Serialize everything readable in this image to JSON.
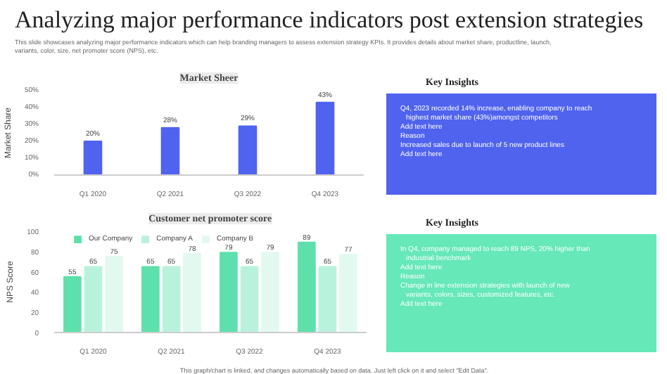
{
  "chart_data": [
    {
      "type": "other",
      "title": "Analyzing major performance indicators post extension strategies",
      "subtitle": "This slide showcases analyzing major performance indicators which can help branding managers to assess extension strategy KPIs. It provides details about market share, productline, launch, variants, color, size, net promoter score (NPS), etc.",
      "annotations": [
        "This graph/chart is linked, and changes automatically based on data. Just left click on it and select \"Edit Data\"."
      ]
    },
    {
      "type": "bar",
      "title": "Market Sheer",
      "ylabel": "Market Share",
      "categories": [
        "Q1 2020",
        "Q2 2021",
        "Q3 2022",
        "Q4 2023"
      ],
      "values": [
        20,
        28,
        29,
        43
      ],
      "value_labels": [
        "20%",
        "28%",
        "29%",
        "43%"
      ],
      "color": "#4f63f0",
      "ylim": [
        0,
        50
      ],
      "yticks": [
        {
          "value": 0,
          "label": "0%"
        },
        {
          "value": 10,
          "label": "10%"
        },
        {
          "value": 20,
          "label": "20%"
        },
        {
          "value": 30,
          "label": "30%"
        },
        {
          "value": 40,
          "label": "40%"
        },
        {
          "value": 50,
          "label": "50%"
        }
      ],
      "grid": false
    },
    {
      "type": "bar",
      "title": "Customer net promoter score",
      "ylabel": "NPS Score",
      "categories": [
        "Q1 2020",
        "Q2 2021",
        "Q3 2022",
        "Q4 2023"
      ],
      "series": [
        {
          "name": "Our Company",
          "color": "#5ee0ac",
          "values": [
            55,
            65,
            79,
            89
          ]
        },
        {
          "name": "Company A",
          "color": "#b8f2dc",
          "values": [
            65,
            65,
            65,
            65
          ]
        },
        {
          "name": "Company B",
          "color": "#e2f9ef",
          "values": [
            75,
            78,
            79,
            77
          ]
        }
      ],
      "ylim": [
        0,
        100
      ],
      "yticks": [
        0,
        20,
        40,
        60,
        80,
        100
      ],
      "data_labels": true,
      "legend": "top",
      "grid": false
    },
    {
      "type": "other",
      "title": "Key Insights",
      "color": "#5063ee",
      "annotations": [
        "Q4, 2023 recorded 14% increase, enabling company to reach highest market share (43%)amongst competitors",
        "Add text here",
        "Reason",
        "Increased sales due to launch of 5 new product lines",
        "Add text here"
      ]
    },
    {
      "type": "other",
      "title": "Key Insights",
      "color": "#66e8b9",
      "annotations": [
        "In Q4, company managed to reach 89 NPS, 20% higher than industrial benchmark",
        "Add text here",
        "Reason",
        "Change in line extension strategies with launch of new variants, colors, sizes, customized features, etc.",
        "Add text here"
      ]
    }
  ]
}
